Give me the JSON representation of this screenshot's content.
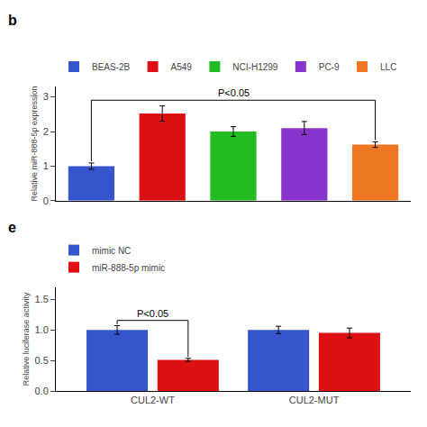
{
  "chart_data": [
    {
      "type": "bar",
      "title": "b",
      "categories": [
        "BEAS-2B",
        "A549",
        "NCI-H1299",
        "PC-9",
        "LLC"
      ],
      "values": [
        1.0,
        2.52,
        2.0,
        2.1,
        1.62
      ],
      "errors": [
        0.09,
        0.22,
        0.14,
        0.19,
        0.08
      ],
      "colors": [
        "#3555cc",
        "#dd1111",
        "#22bb22",
        "#8833cc",
        "#ee7722"
      ],
      "ylabel": "Relative miR-888-5p expression",
      "ylim": [
        0,
        3.3
      ],
      "yticks": [
        0,
        1,
        2,
        3
      ],
      "tick_labels": "y",
      "grid": false,
      "legend": "top",
      "annotations": [
        {
          "text": "P<0.05",
          "from": "BEAS-2B",
          "to": "LLC"
        }
      ]
    },
    {
      "type": "bar",
      "title": "e",
      "categories": [
        "CUL2-WT",
        "CUL2-MUT"
      ],
      "series": [
        {
          "name": "mimic NC",
          "color": "#3555cc",
          "values": [
            1.0,
            1.0
          ],
          "errors": [
            0.07,
            0.06
          ]
        },
        {
          "name": "miR-888-5p mimic",
          "color": "#dd1111",
          "values": [
            0.51,
            0.95
          ],
          "errors": [
            0.025,
            0.08
          ]
        }
      ],
      "ylabel": "Relative luciferase activity",
      "ylim": [
        0,
        1.7
      ],
      "yticks": [
        {
          "value": 0.0,
          "label": "0.0"
        },
        0.5,
        {
          "value": 1.0,
          "label": "1.0"
        },
        1.5
      ],
      "grid": false,
      "legend": "top",
      "annotations": [
        {
          "text": "P<0.05",
          "category": "CUL2-WT"
        }
      ]
    }
  ]
}
